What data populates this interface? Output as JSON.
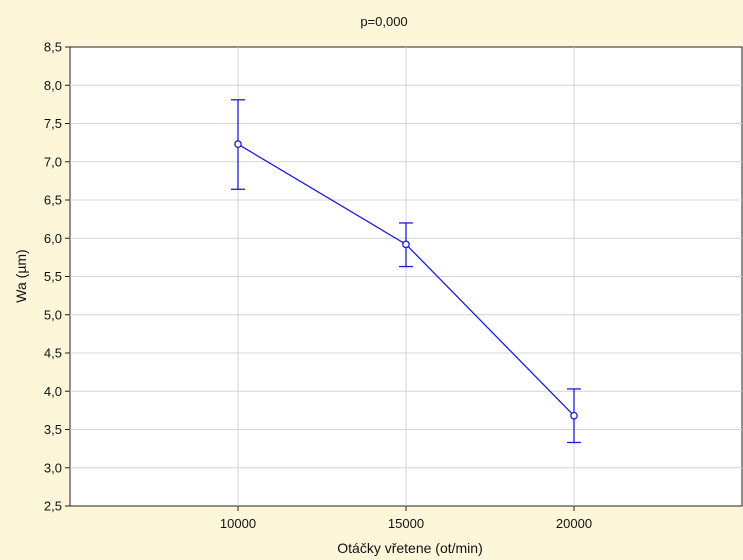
{
  "chart_data": {
    "type": "line",
    "title": "p=0,000",
    "xlabel": "Otáčky vřetene (ot/min)",
    "ylabel": "Wa (µm)",
    "categories": [
      "10000",
      "15000",
      "20000"
    ],
    "x": [
      10000,
      15000,
      20000
    ],
    "xlim": [
      5000,
      25000
    ],
    "ylim": [
      2.5,
      8.5
    ],
    "y_ticks": [
      2.5,
      3.0,
      3.5,
      4.0,
      4.5,
      5.0,
      5.5,
      6.0,
      6.5,
      7.0,
      7.5,
      8.0,
      8.5
    ],
    "y_tick_labels": [
      "2,5",
      "3,0",
      "3,5",
      "4,0",
      "4,5",
      "5,0",
      "5,5",
      "6,0",
      "6,5",
      "7,0",
      "7,5",
      "8,0",
      "8,5"
    ],
    "series": [
      {
        "values": [
          7.23,
          5.92,
          3.68
        ],
        "error_low": [
          6.64,
          5.63,
          3.33
        ],
        "error_high": [
          7.81,
          6.2,
          4.03
        ],
        "color": "#1c1cd8",
        "marker": "circle"
      }
    ],
    "grid": true,
    "legend": false
  }
}
